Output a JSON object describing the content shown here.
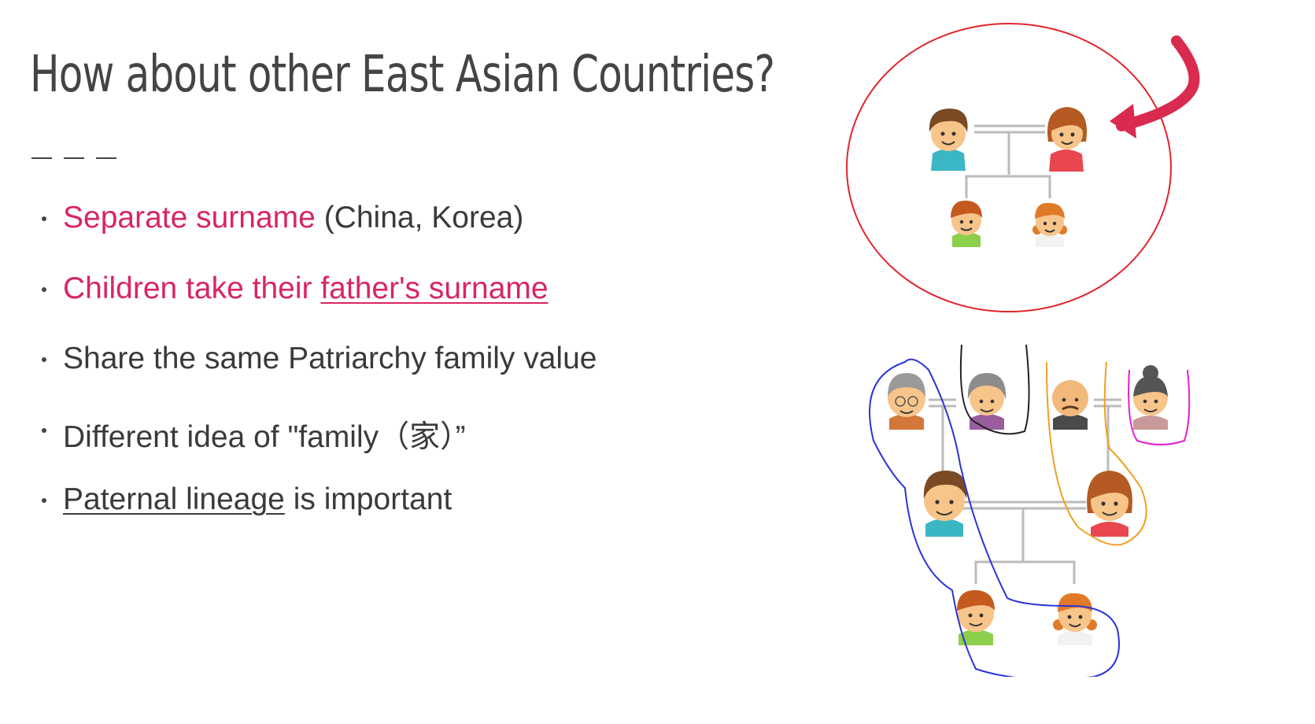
{
  "slide": {
    "title": "How about other East Asian Countries?",
    "bullets": [
      {
        "accent": "Separate surname",
        "rest": " (China, Korea)"
      },
      {
        "accent": "Children take their ",
        "accent_underlined": "father's surname"
      },
      {
        "rest": "Share the same Patriarchy family value"
      },
      {
        "rest": "Different idea of \"family（家）”"
      },
      {
        "underlined": "Paternal lineage",
        "rest": " is important"
      }
    ]
  },
  "colors": {
    "accent": "#d9265f",
    "text": "#3a3a3a",
    "title": "#444444",
    "annotation_red": "#e0242b",
    "annotation_arrow": "#d92a4f",
    "annotation_blue": "#2b34d6",
    "annotation_orange": "#f0a020",
    "annotation_magenta": "#e020d0",
    "annotation_black": "#222222"
  },
  "figures": {
    "nuclear_family": {
      "icon": "family-tree-icon",
      "members": [
        "father",
        "mother",
        "son",
        "daughter"
      ]
    },
    "extended_family": {
      "icon": "extended-family-tree-icon",
      "members": [
        "paternal-grandfather",
        "paternal-grandmother",
        "maternal-grandfather",
        "maternal-grandmother",
        "father",
        "mother",
        "son",
        "daughter"
      ]
    }
  }
}
